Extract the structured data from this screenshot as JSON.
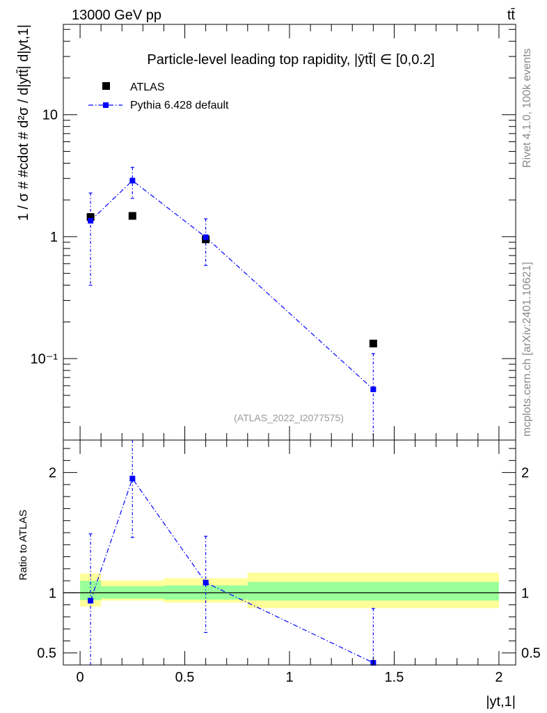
{
  "header": {
    "left": "13000 GeV pp",
    "right": "tt̄"
  },
  "chart_data": [
    {
      "type": "scatter",
      "panel": "main",
      "title": "Particle-level leading top rapidity, |ȳtt̄| ∈ [0,0.2]",
      "ylabel": "1 / σ # #cdot # d²σ / d|ytt̄| d|yt,1|",
      "yscale": "log",
      "xlim": [
        -0.08,
        2.08
      ],
      "ylim": [
        0.0215,
        55
      ],
      "yticks": [
        {
          "value": 0.1,
          "label": "10⁻¹"
        },
        {
          "value": 1,
          "label": "1"
        },
        {
          "value": 10,
          "label": "10"
        }
      ],
      "legend": [
        "ATLAS",
        "Pythia 6.428 default"
      ],
      "legend_position": "top-left",
      "series": [
        {
          "name": "ATLAS",
          "color": "#000000",
          "marker": "square",
          "x": [
            0.05,
            0.25,
            0.6,
            1.4
          ],
          "y": [
            1.45,
            1.48,
            0.95,
            0.133
          ]
        },
        {
          "name": "Pythia 6.428 default",
          "color": "#0000ff",
          "marker": "square",
          "line": "dash-dot",
          "x": [
            0.05,
            0.25,
            0.6,
            1.4
          ],
          "y": [
            1.35,
            2.88,
            0.99,
            0.056
          ],
          "yerr_low": [
            0.95,
            0.82,
            0.41,
            0.056
          ],
          "yerr_high": [
            0.93,
            0.82,
            0.41,
            0.054
          ]
        }
      ],
      "annotation": "(ATLAS_2022_I2077575)"
    },
    {
      "type": "scatter",
      "panel": "ratio",
      "ylabel": "Ratio to ATLAS",
      "xlabel": "|yt,1|",
      "xlim": [
        -0.08,
        2.08
      ],
      "ylim": [
        0.4,
        2.27
      ],
      "xticks": [
        {
          "value": 0,
          "label": "0"
        },
        {
          "value": 0.5,
          "label": "0.5"
        },
        {
          "value": 1,
          "label": "1"
        },
        {
          "value": 1.5,
          "label": "1.5"
        },
        {
          "value": 2,
          "label": "2"
        }
      ],
      "yticks": [
        {
          "value": 0.5,
          "label": "0.5"
        },
        {
          "value": 1,
          "label": "1"
        },
        {
          "value": 2,
          "label": "2"
        }
      ],
      "bands": [
        {
          "x": [
            0,
            0.1
          ],
          "inner": [
            0.94,
            1.1
          ],
          "outer": [
            0.885,
            1.16
          ]
        },
        {
          "x": [
            0.1,
            0.4
          ],
          "inner": [
            0.953,
            1.055
          ],
          "outer": [
            0.935,
            1.103
          ]
        },
        {
          "x": [
            0.4,
            0.8
          ],
          "inner": [
            0.943,
            1.062
          ],
          "outer": [
            0.918,
            1.12
          ]
        },
        {
          "x": [
            0.8,
            2.0
          ],
          "inner": [
            0.936,
            1.09
          ],
          "outer": [
            0.873,
            1.167
          ]
        }
      ],
      "series": [
        {
          "name": "Pythia 6.428 default",
          "color": "#0000ff",
          "marker": "square",
          "line": "dash-dot",
          "x": [
            0.05,
            0.25,
            0.6,
            1.4
          ],
          "y": [
            0.935,
            1.95,
            1.085,
            0.418
          ],
          "yerr_low": [
            0.545,
            0.49,
            0.415,
            0.018
          ],
          "yerr_high": [
            0.555,
            0.39,
            0.385,
            0.452
          ]
        }
      ]
    }
  ],
  "side_labels": {
    "top": "Rivet 4.1.0,  100k events",
    "bottom": "mcplots.cern.ch [arXiv:2401.10621]"
  },
  "colors": {
    "data": "#000000",
    "mc": "#0000ff",
    "band_inner": "#99ff99",
    "band_outer": "#ffff99",
    "side_text": "#888888",
    "annotation_text": "#999999"
  }
}
